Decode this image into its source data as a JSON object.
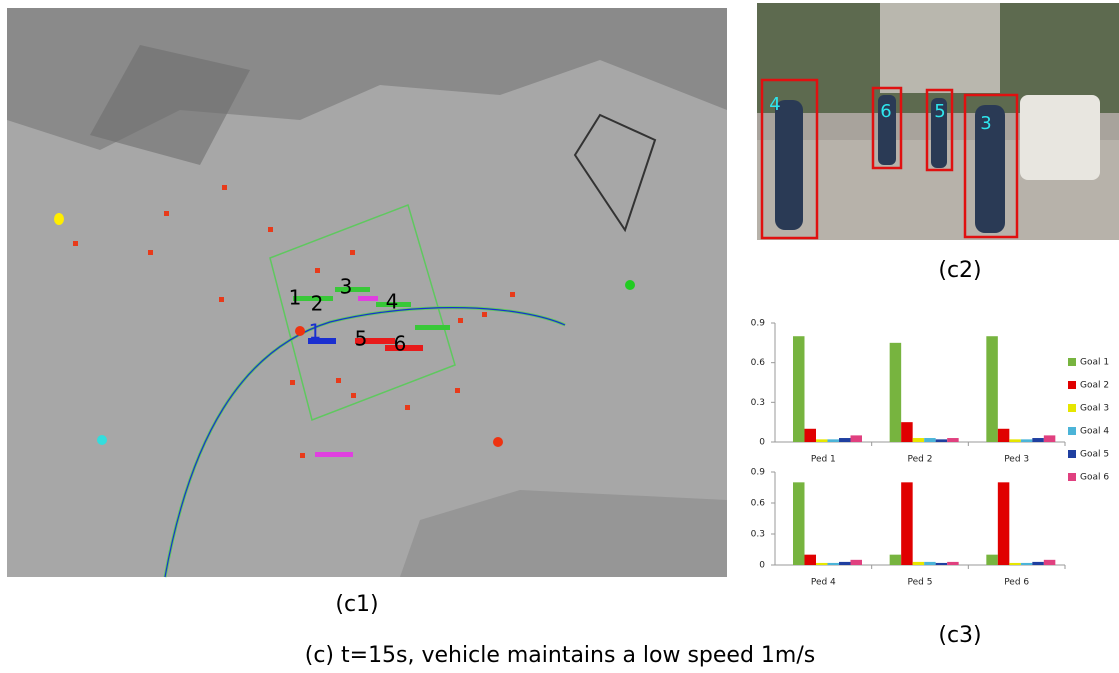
{
  "map": {
    "labels": [
      "1",
      "2",
      "3",
      "4",
      "1",
      "5",
      "6"
    ],
    "caption": "(c1)"
  },
  "photo": {
    "labels": [
      "4",
      "6",
      "5",
      "3"
    ],
    "caption": "(c2)"
  },
  "chart_caption": "(c3)",
  "caption": "(c) t=15s, vehicle maintains a low speed 1m/s",
  "chart_data": {
    "type": "bar",
    "categories": [
      "Ped 1",
      "Ped 2",
      "Ped 3",
      "Ped 4",
      "Ped 5",
      "Ped 6"
    ],
    "series": [
      {
        "name": "Goal 1",
        "color": "#77b43f",
        "values": [
          0.8,
          0.75,
          0.8,
          0.8,
          0.1,
          0.1
        ]
      },
      {
        "name": "Goal 2",
        "color": "#e00000",
        "values": [
          0.1,
          0.15,
          0.1,
          0.1,
          0.8,
          0.8
        ]
      },
      {
        "name": "Goal 3",
        "color": "#e6e600",
        "values": [
          0.02,
          0.03,
          0.02,
          0.02,
          0.03,
          0.02
        ]
      },
      {
        "name": "Goal 4",
        "color": "#4bb4d8",
        "values": [
          0.02,
          0.03,
          0.02,
          0.02,
          0.03,
          0.02
        ]
      },
      {
        "name": "Goal 5",
        "color": "#1f3fa0",
        "values": [
          0.03,
          0.02,
          0.03,
          0.03,
          0.02,
          0.03
        ]
      },
      {
        "name": "Goal 6",
        "color": "#e0407f",
        "values": [
          0.05,
          0.03,
          0.05,
          0.05,
          0.03,
          0.05
        ]
      }
    ],
    "ylim": [
      0,
      0.9
    ],
    "yticks": [
      0,
      0.3,
      0.6,
      0.9
    ],
    "grid": false
  }
}
